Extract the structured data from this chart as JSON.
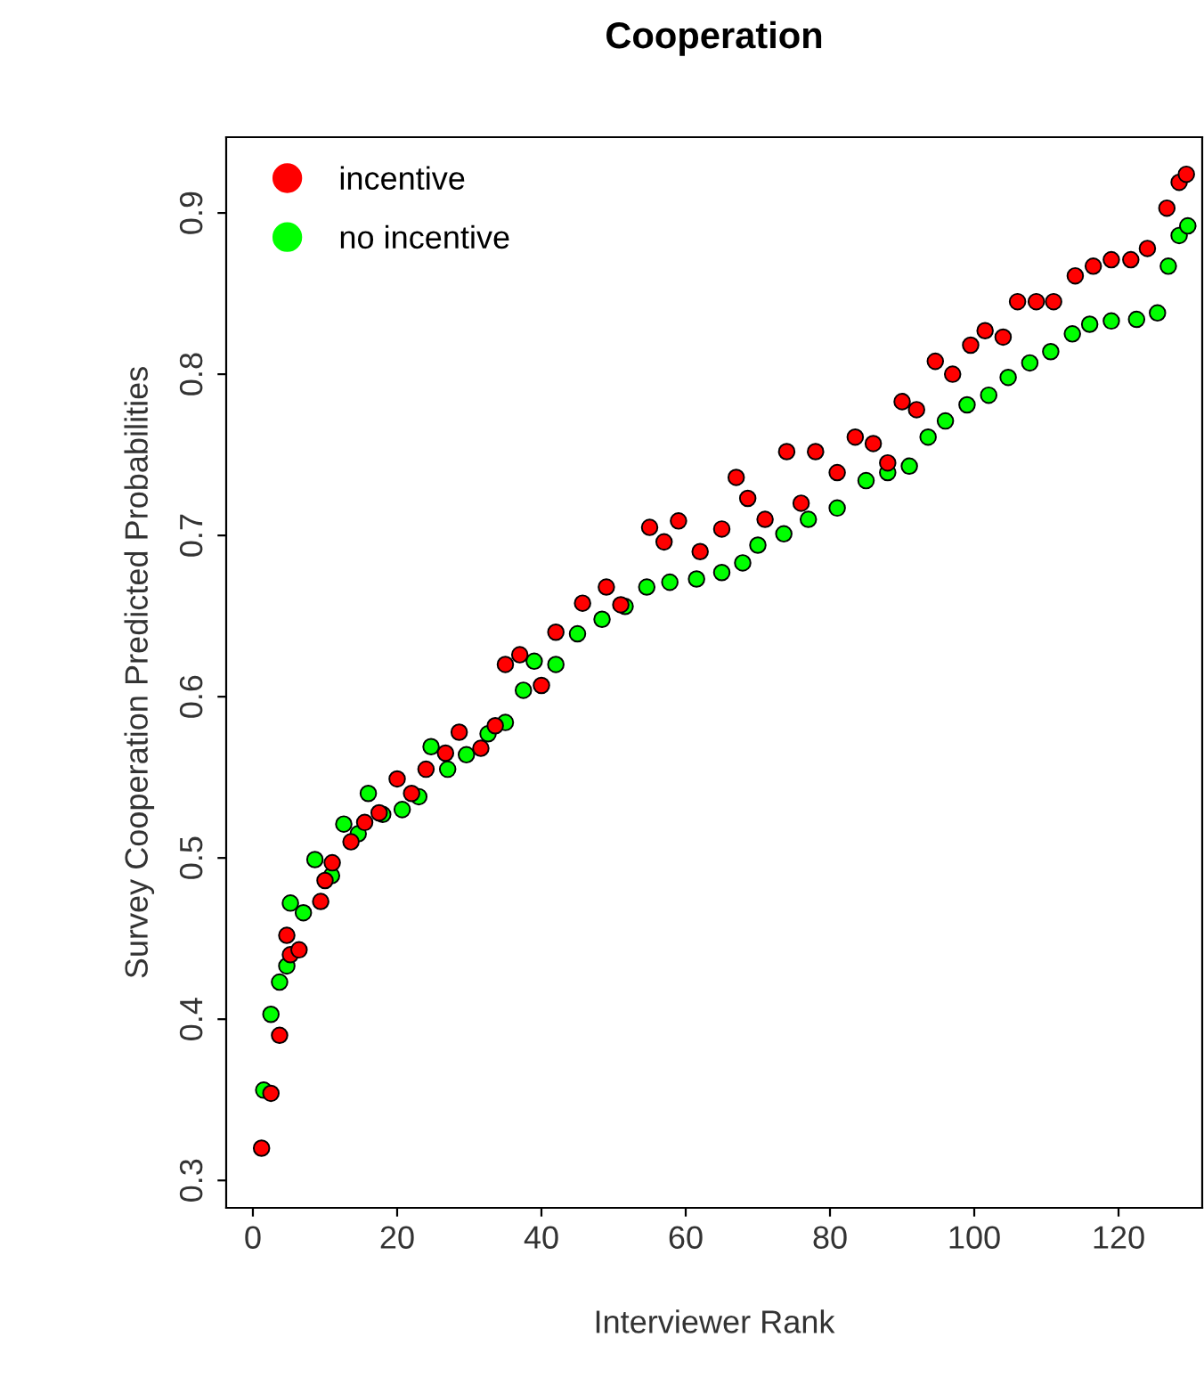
{
  "chart_data": {
    "type": "scatter",
    "title": "Cooperation",
    "xlabel": "Interviewer Rank",
    "ylabel": "Survey Cooperation Predicted Probabilities",
    "xlim": [
      -3.7,
      131.6
    ],
    "ylim": [
      0.283,
      0.947
    ],
    "xticks": [
      0,
      20,
      40,
      60,
      80,
      100,
      120
    ],
    "yticks": [
      0.3,
      0.4,
      0.5,
      0.6,
      0.7,
      0.8,
      0.9
    ],
    "grid": false,
    "legend": "top left",
    "marker": "circle",
    "series": [
      {
        "name": "incentive",
        "color": "#ff0000",
        "x": [
          1.2,
          2.5,
          3.7,
          4.7,
          5.2,
          6.4,
          9.4,
          10,
          11,
          13.6,
          15.5,
          17.5,
          20,
          22,
          24,
          26.7,
          28.6,
          31.6,
          33.6,
          35,
          37,
          40,
          42,
          45.7,
          49,
          51,
          55,
          57,
          59,
          62,
          65,
          67,
          68.6,
          71,
          74,
          76,
          78,
          81,
          83.5,
          86,
          88,
          90,
          92,
          94.6,
          97,
          99.5,
          101.5,
          104,
          106,
          108.6,
          111,
          114,
          116.5,
          119,
          121.7,
          124,
          126.7,
          128.4,
          129.4
        ],
        "values": [
          0.32,
          0.354,
          0.39,
          0.452,
          0.44,
          0.443,
          0.473,
          0.486,
          0.497,
          0.51,
          0.522,
          0.528,
          0.549,
          0.54,
          0.555,
          0.565,
          0.578,
          0.568,
          0.582,
          0.62,
          0.626,
          0.607,
          0.64,
          0.658,
          0.668,
          0.657,
          0.705,
          0.696,
          0.709,
          0.69,
          0.704,
          0.736,
          0.723,
          0.71,
          0.752,
          0.72,
          0.752,
          0.739,
          0.761,
          0.757,
          0.745,
          0.783,
          0.778,
          0.808,
          0.8,
          0.818,
          0.827,
          0.823,
          0.845,
          0.845,
          0.845,
          0.861,
          0.867,
          0.871,
          0.871,
          0.878,
          0.903,
          0.919,
          0.924
        ]
      },
      {
        "name": "no incentive",
        "color": "#00ff00",
        "x": [
          1.5,
          2.5,
          3.7,
          4.7,
          5.2,
          7,
          8.6,
          10.9,
          12.6,
          14.6,
          16,
          18,
          20.7,
          23,
          24.7,
          27,
          29.6,
          32.6,
          35,
          37.5,
          39,
          42,
          45,
          48.4,
          51.6,
          54.6,
          57.8,
          61.5,
          65,
          67.9,
          70,
          73.6,
          77,
          81,
          85,
          88,
          91,
          93.6,
          96,
          99,
          102,
          104.7,
          107.7,
          110.6,
          113.6,
          116,
          119,
          122.5,
          125.4,
          126.9,
          128.4,
          129.6
        ],
        "values": [
          0.356,
          0.403,
          0.423,
          0.433,
          0.472,
          0.466,
          0.499,
          0.489,
          0.521,
          0.515,
          0.54,
          0.527,
          0.53,
          0.538,
          0.569,
          0.555,
          0.564,
          0.577,
          0.584,
          0.604,
          0.622,
          0.62,
          0.639,
          0.648,
          0.656,
          0.668,
          0.671,
          0.673,
          0.677,
          0.683,
          0.694,
          0.701,
          0.71,
          0.717,
          0.734,
          0.739,
          0.743,
          0.761,
          0.771,
          0.781,
          0.787,
          0.798,
          0.807,
          0.814,
          0.825,
          0.831,
          0.833,
          0.834,
          0.838,
          0.867,
          0.886,
          0.892
        ]
      }
    ]
  }
}
